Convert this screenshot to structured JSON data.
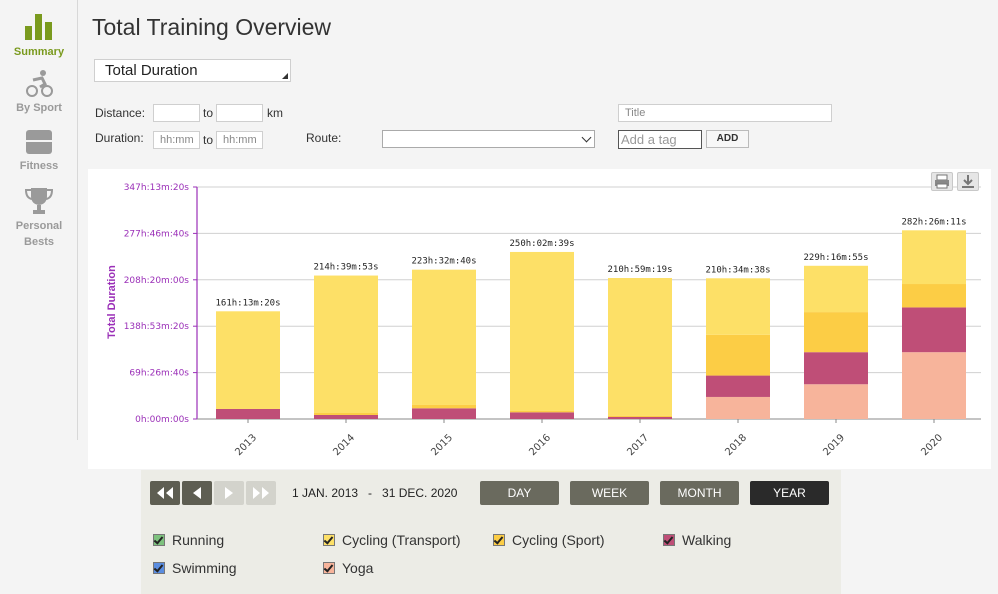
{
  "sidebar": {
    "items": [
      {
        "label": "Summary"
      },
      {
        "label": "By Sport"
      },
      {
        "label": "Fitness"
      },
      {
        "label": "Personal Bests"
      }
    ]
  },
  "page_title": "Total Training Overview",
  "metric_select": {
    "value": "Total Duration"
  },
  "filters": {
    "distance_label": "Distance:",
    "to_label": "to",
    "km_label": "km",
    "duration_label": "Duration:",
    "duration_from_placeholder": "hh:mm",
    "duration_to_placeholder": "hh:mm",
    "route_label": "Route:",
    "title_placeholder": "Title",
    "tag_placeholder": "Add a tag",
    "add_label": "ADD"
  },
  "colors": {
    "running": "#7ec27e",
    "cycling_transport": "#fde067",
    "cycling_sport": "#fccd45",
    "walking": "#bf4e77",
    "swimming": "#5a8de0",
    "yoga": "#f7b49b",
    "axis": "#9b30b8"
  },
  "chart_data": {
    "type": "bar",
    "stacked": true,
    "ylabel": "Total Duration",
    "y_ticks": [
      "0h:00m:00s",
      "69h:26m:40s",
      "138h:53m:20s",
      "208h:20m:00s",
      "277h:46m:40s",
      "347h:13m:20s"
    ],
    "y_tick_values": [
      0,
      69.444,
      138.889,
      208.333,
      277.778,
      347.222
    ],
    "ylim": [
      0,
      347.222
    ],
    "unit": "hours",
    "categories": [
      "2013",
      "2014",
      "2015",
      "2016",
      "2017",
      "2018",
      "2019",
      "2020"
    ],
    "totals_labels": [
      "161h:13m:20s",
      "214h:39m:53s",
      "223h:32m:40s",
      "250h:02m:39s",
      "210h:59m:19s",
      "210h:34m:38s",
      "229h:16m:55s",
      "282h:26m:11s"
    ],
    "series": [
      {
        "name": "Yoga",
        "color_key": "yoga",
        "values": [
          0,
          0,
          0,
          0,
          0,
          33,
          52,
          100
        ]
      },
      {
        "name": "Walking",
        "color_key": "walking",
        "values": [
          15,
          6,
          16,
          10,
          3,
          32,
          48,
          67
        ]
      },
      {
        "name": "Cycling (Sport)",
        "color_key": "cycling_sport",
        "values": [
          0,
          3,
          5,
          2,
          2,
          61,
          60,
          35
        ]
      },
      {
        "name": "Cycling (Transport)",
        "color_key": "cycling_transport",
        "values": [
          146.2,
          205.7,
          202.5,
          238,
          206,
          84.6,
          69.3,
          80.4
        ]
      }
    ]
  },
  "date_range": "1 JAN. 2013   -   31 DEC. 2020",
  "periods": [
    {
      "label": "DAY"
    },
    {
      "label": "WEEK"
    },
    {
      "label": "MONTH"
    },
    {
      "label": "YEAR"
    }
  ],
  "legend": [
    {
      "label": "Running",
      "color_key": "running"
    },
    {
      "label": "Cycling (Transport)",
      "color_key": "cycling_transport"
    },
    {
      "label": "Cycling (Sport)",
      "color_key": "cycling_sport"
    },
    {
      "label": "Walking",
      "color_key": "walking"
    },
    {
      "label": "Swimming",
      "color_key": "swimming"
    },
    {
      "label": "Yoga",
      "color_key": "yoga"
    }
  ]
}
